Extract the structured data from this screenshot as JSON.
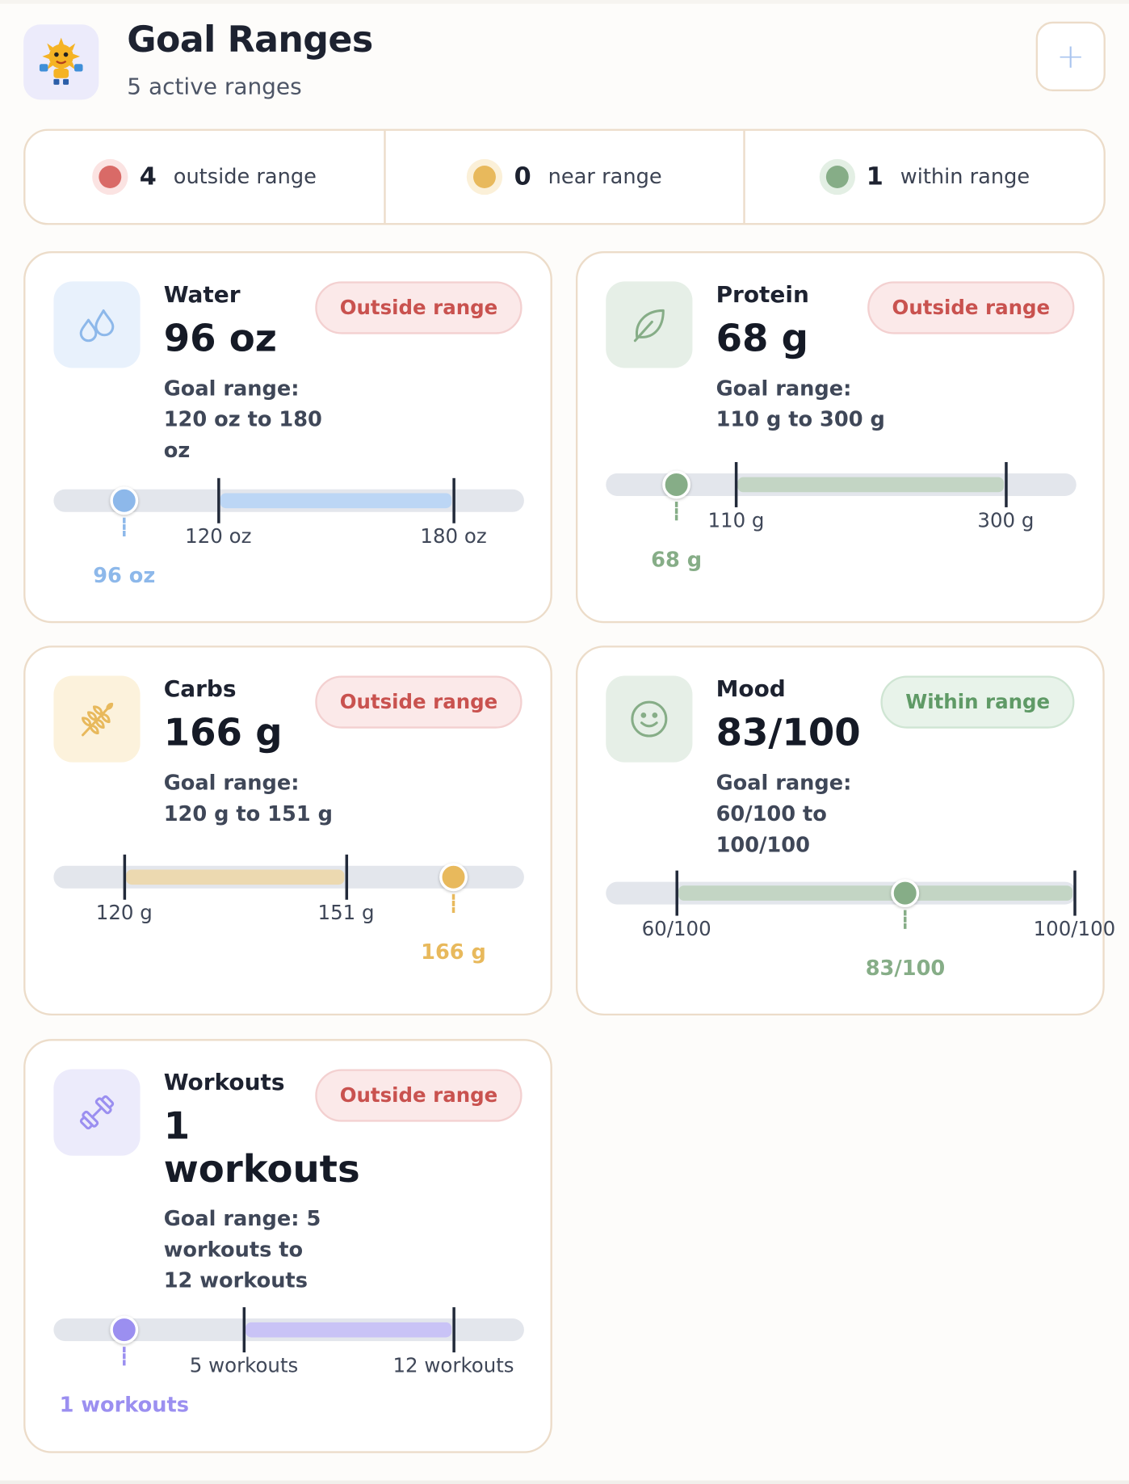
{
  "header": {
    "title": "Goal Ranges",
    "subtitle": "5 active ranges",
    "add_label": "+"
  },
  "summary": [
    {
      "count": "4",
      "label": "outside range",
      "color": "#d96a67"
    },
    {
      "count": "0",
      "label": "near range",
      "color": "#e8b95c"
    },
    {
      "count": "1",
      "label": "within range",
      "color": "#86ad87"
    }
  ],
  "cards": {
    "water": {
      "name": "Water",
      "value": "96 oz",
      "goal": "Goal range: 120 oz to 180 oz",
      "status": "Outside range",
      "min_label": "120 oz",
      "max_label": "180 oz",
      "current_label": "96 oz",
      "min": 120,
      "max": 180,
      "current": 96,
      "accent": "#8db8ea",
      "icon": "water-drops-icon"
    },
    "protein": {
      "name": "Protein",
      "value": "68 g",
      "goal": "Goal range: 110 g to 300 g",
      "status": "Outside range",
      "min_label": "110 g",
      "max_label": "300 g",
      "current_label": "68 g",
      "min": 110,
      "max": 300,
      "current": 68,
      "accent": "#86ad87",
      "icon": "leaf-icon"
    },
    "carbs": {
      "name": "Carbs",
      "value": "166 g",
      "goal": "Goal range: 120 g to 151 g",
      "status": "Outside range",
      "min_label": "120 g",
      "max_label": "151 g",
      "current_label": "166 g",
      "min": 120,
      "max": 151,
      "current": 166,
      "accent": "#e8b95c",
      "icon": "wheat-icon"
    },
    "mood": {
      "name": "Mood",
      "value": "83/100",
      "goal": "Goal range: 60/100 to 100/100",
      "status": "Within range",
      "min_label": "60/100",
      "max_label": "100/100",
      "current_label": "83/100",
      "min": 60,
      "max": 100,
      "current": 83,
      "accent": "#86ad87",
      "icon": "smiley-icon"
    },
    "workouts": {
      "name": "Workouts",
      "value": "1 workouts",
      "goal": "Goal range: 5 workouts to 12 workouts",
      "status": "Outside range",
      "min_label": "5 workouts",
      "max_label": "12 workouts",
      "current_label": "1 workouts",
      "min": 5,
      "max": 12,
      "current": 1,
      "accent": "#9b8ff0",
      "icon": "dumbbell-icon"
    }
  }
}
